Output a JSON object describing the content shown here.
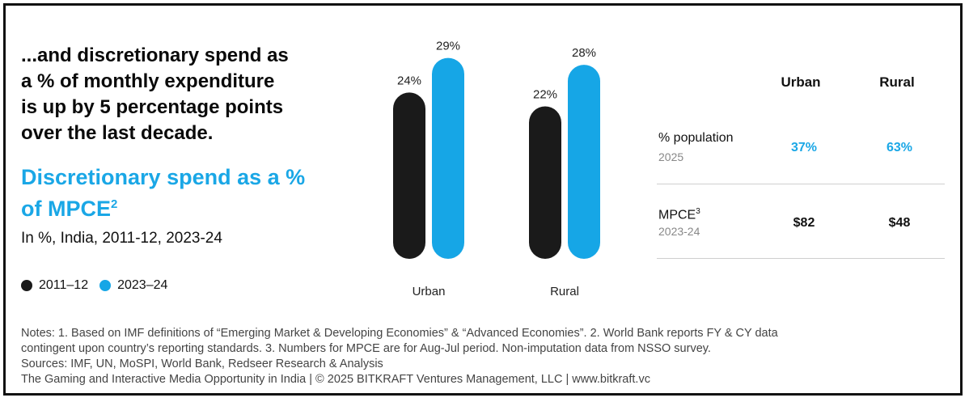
{
  "headline": [
    "...and discretionary spend as",
    "a % of monthly expenditure",
    "is up by 5 percentage points",
    "over the last decade."
  ],
  "subtitle": {
    "line1": "Discretionary spend as a %",
    "line2_text": "of MPCE",
    "line2_sup": "2"
  },
  "description": "In %, India, 2011-12, 2023-24",
  "legend": [
    {
      "label": "2011–12",
      "color": "#1a1a1a"
    },
    {
      "label": "2023–24",
      "color": "#16a6e6"
    }
  ],
  "chart_data": {
    "type": "bar",
    "categories": [
      "Urban",
      "Rural"
    ],
    "series": [
      {
        "name": "2011–12",
        "values": [
          24,
          22
        ],
        "labels": [
          "24%",
          "22%"
        ],
        "color": "#1a1a1a"
      },
      {
        "name": "2023–24",
        "values": [
          29,
          28
        ],
        "labels": [
          "29%",
          "28%"
        ],
        "color": "#16a6e6"
      }
    ],
    "ylim": [
      0,
      30
    ],
    "title": "Discretionary spend as a % of MPCE",
    "xlabel": "",
    "ylabel": ""
  },
  "table": {
    "headers": [
      "Urban",
      "Rural"
    ],
    "rows": [
      {
        "label": "% population",
        "sub": "2025",
        "label_sup": "",
        "values": [
          "37%",
          "63%"
        ],
        "accent": true
      },
      {
        "label": "MPCE",
        "label_sup": "3",
        "sub": "2023-24",
        "values": [
          "$82",
          "$48"
        ],
        "accent": false
      }
    ],
    "accent_color": "#1aa7e6"
  },
  "notes": [
    "Notes: 1. Based on IMF definitions of “Emerging Market & Developing Economies” & “Advanced Economies”. 2. World Bank reports FY & CY data",
    "contingent upon country’s reporting standards. 3. Numbers for MPCE are for Aug-Jul period. Non-imputation data from NSSO survey.",
    "Sources: IMF, UN, MoSPI, World Bank, Redseer Research & Analysis",
    "The Gaming and Interactive Media Opportunity in India | © 2025 BITKRAFT Ventures Management, LLC | www.bitkraft.vc"
  ]
}
